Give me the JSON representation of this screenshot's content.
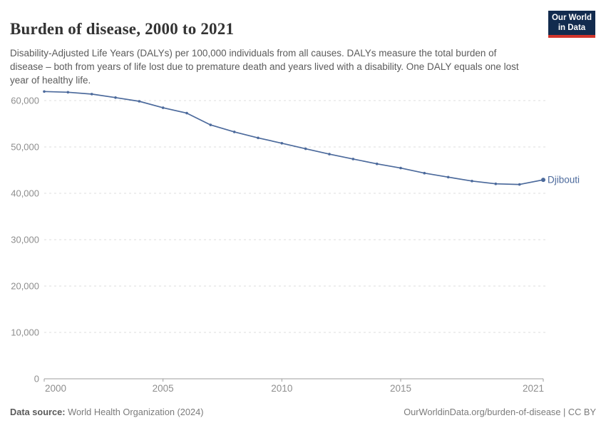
{
  "header": {
    "title": "Burden of disease, 2000 to 2021",
    "subtitle": "Disability-Adjusted Life Years (DALYs) per 100,000 individuals from all causes. DALYs measure the total burden of disease – both from years of life lost due to premature death and years lived with a disability. One DALY equals one lost year of healthy life.",
    "logo": {
      "line1": "Our World",
      "line2": "in Data",
      "bg_color": "#122b4e",
      "accent_color": "#d1342b"
    }
  },
  "chart_data": {
    "type": "line",
    "title": "Burden of disease, 2000 to 2021",
    "xlabel": "",
    "ylabel": "DALYs per 100,000 individuals",
    "xlim": [
      2000,
      2021
    ],
    "ylim": [
      0,
      64000
    ],
    "grid": "horizontal-dashed",
    "legend_position": "end-of-line-label",
    "x_ticks": [
      2000,
      2005,
      2010,
      2015,
      2021
    ],
    "y_ticks": [
      0,
      10000,
      20000,
      30000,
      40000,
      50000,
      60000
    ],
    "y_tick_labels": [
      "0",
      "10,000",
      "20,000",
      "30,000",
      "40,000",
      "50,000",
      "60,000"
    ],
    "series": [
      {
        "name": "Djibouti",
        "color": "#4c6a9c",
        "x": [
          2000,
          2001,
          2002,
          2003,
          2004,
          2005,
          2006,
          2007,
          2008,
          2009,
          2010,
          2011,
          2012,
          2013,
          2014,
          2015,
          2016,
          2017,
          2018,
          2019,
          2020,
          2021
        ],
        "values": [
          61950,
          61800,
          61400,
          60650,
          59850,
          58450,
          57300,
          54750,
          53250,
          51950,
          50800,
          49600,
          48450,
          47400,
          46350,
          45450,
          44350,
          43500,
          42650,
          42050,
          41900,
          42900
        ]
      }
    ]
  },
  "footer": {
    "source_label": "Data source:",
    "source_value": "World Health Organization (2024)",
    "attribution": "OurWorldinData.org/burden-of-disease | CC BY"
  },
  "colors": {
    "title": "#333333",
    "subtitle": "#5b5b5b",
    "tick_label": "#8e8e8e",
    "gridline": "#dcdcdc",
    "axis": "#9e9e9e",
    "line": "#4c6a9c"
  }
}
